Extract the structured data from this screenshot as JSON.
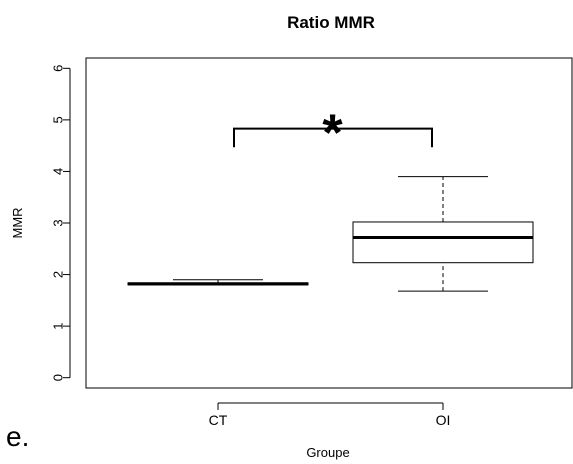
{
  "panel_label": "e.",
  "chart_data": {
    "type": "boxplot",
    "title": "Ratio MMR",
    "xlabel": "Groupe",
    "ylabel": "MMR",
    "ylim": [
      -0.2,
      6.2
    ],
    "yticks": [
      0,
      1,
      2,
      3,
      4,
      5,
      6
    ],
    "categories": [
      "CT",
      "OI"
    ],
    "boxes": [
      {
        "category": "CT",
        "whisker_low": 1.8,
        "q1": 1.8,
        "median": 1.82,
        "q3": 1.84,
        "whisker_high": 1.9
      },
      {
        "category": "OI",
        "whisker_low": 1.68,
        "q1": 2.23,
        "median": 2.72,
        "q3": 3.02,
        "whisker_high": 3.9
      }
    ],
    "significance": {
      "between": [
        "CT",
        "OI"
      ],
      "label": "*",
      "bracket_y": 4.83,
      "bracket_drop_y": 4.47
    },
    "grid": false
  }
}
